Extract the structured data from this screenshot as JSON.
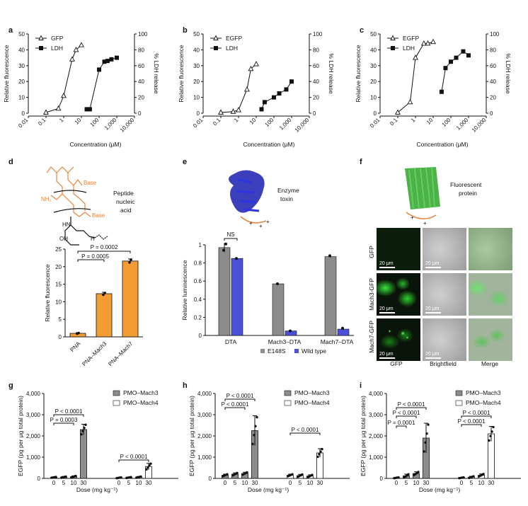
{
  "panels": {
    "a": {
      "letter": "a",
      "legend": [
        "GFP",
        "LDH"
      ],
      "xlabel": "Concentration (μM)",
      "ylabel_left": "Relative fluorescence",
      "ylabel_right": "% LDH release",
      "yticks_left": [
        "0",
        "10",
        "20",
        "30",
        "40",
        "50"
      ],
      "yticks_right": [
        "0",
        "20",
        "40",
        "60",
        "80",
        "100"
      ],
      "xticks": [
        "0.01",
        "0.1",
        "1",
        "10",
        "100",
        "1,000",
        "10,000"
      ]
    },
    "b": {
      "letter": "b",
      "legend": [
        "EGFP",
        "LDH"
      ],
      "xlabel": "Concentration (μM)",
      "ylabel_left": "Relative fluorescence",
      "ylabel_right": "% LDH release",
      "yticks_left": [
        "0",
        "10",
        "20",
        "30",
        "40",
        "50"
      ],
      "yticks_right": [
        "0",
        "20",
        "40",
        "60",
        "80",
        "100"
      ],
      "xticks": [
        "0.01",
        "0.1",
        "1",
        "10",
        "100",
        "1,000",
        "10,000"
      ]
    },
    "c": {
      "letter": "c",
      "legend": [
        "EGFP",
        "LDH"
      ],
      "xlabel": "Concentration (μM)",
      "ylabel_left": "Relative fluorescence",
      "ylabel_right": "% LDH release",
      "yticks_left": [
        "0",
        "10",
        "20",
        "30",
        "40",
        "50"
      ],
      "yticks_right": [
        "0",
        "20",
        "40",
        "60",
        "80",
        "100"
      ],
      "xticks": [
        "0.01",
        "0.1",
        "1",
        "10",
        "100",
        "1,000",
        "10,000"
      ]
    },
    "d": {
      "letter": "d",
      "cargo_label": [
        "Peptide",
        "nucleic",
        "acid"
      ],
      "ylabel": "Relative fluorescence",
      "yticks": [
        "0",
        "5",
        "10",
        "15",
        "20",
        "25"
      ],
      "categories": [
        "PNA",
        "PNA–Mach3",
        "PNA–Mach7"
      ],
      "stats": [
        "P = 0.0002",
        "P = 0.0005"
      ],
      "chem": {
        "base1": "Base",
        "base2": "Base",
        "nh2": "NH₂",
        "hn": "HN",
        "oh": "OH",
        "o": "O",
        "n": "N",
        "h": "H"
      }
    },
    "e": {
      "letter": "e",
      "cargo_label": [
        "Enzyme",
        "toxin"
      ],
      "ylabel": "Relative luminescence",
      "yticks": [
        "0",
        "0.2",
        "0.4",
        "0.6",
        "0.8",
        "1"
      ],
      "categories": [
        "DTA",
        "Mach3–DTA",
        "Mach7–DTA"
      ],
      "legend": [
        "E148S",
        "Wild type"
      ],
      "ns": "NS"
    },
    "f": {
      "letter": "f",
      "cargo_label": [
        "Fluorescent",
        "protein"
      ],
      "rows": [
        "GFP",
        "Mach3-GFP",
        "Mach7-GFP"
      ],
      "cols": [
        "GFP",
        "Brightfield",
        "Merge"
      ],
      "scale_bar": "20 μm"
    },
    "g": {
      "letter": "g",
      "legend": [
        "PMO–Mach3",
        "PMO–Mach4"
      ],
      "stats": [
        "P < 0.0001",
        "P = 0.0003",
        "P < 0.0001"
      ]
    },
    "h": {
      "letter": "h",
      "legend": [
        "PMO–Mach3",
        "PMO–Mach4"
      ],
      "stats": [
        "P < 0.0001",
        "P < 0.0001",
        "P < 0.0001"
      ]
    },
    "i": {
      "letter": "i",
      "legend": [
        "PMO–Mach3",
        "PMO–Mach4"
      ],
      "stats": [
        "P < 0.0001",
        "P < 0.0001",
        "P = 0.0001",
        "P < 0.0001",
        "P < 0.0001"
      ]
    },
    "ghi_common": {
      "ylabel": "EGFP (pg per μg total protein)",
      "yticks": [
        "0",
        "1,000",
        "2,000",
        "3,000",
        "4,000"
      ],
      "doses": [
        "0",
        "5",
        "10",
        "30"
      ],
      "xlabel": "Dose (mg kg⁻¹)"
    }
  },
  "chart_data": [
    {
      "id": "a",
      "type": "scatter",
      "xscale": "log",
      "xlim": [
        0.01,
        10000
      ],
      "ylim_left": [
        0,
        50
      ],
      "ylim_right": [
        0,
        100
      ],
      "series": [
        {
          "name": "GFP",
          "axis": "left",
          "x": [
            0.1,
            0.5,
            1,
            3,
            5,
            10
          ],
          "y": [
            0.5,
            3,
            11,
            34,
            40,
            43
          ]
        },
        {
          "name": "LDH",
          "axis": "right",
          "x": [
            20,
            30,
            100,
            200,
            300,
            500,
            1000
          ],
          "y": [
            5,
            5,
            55,
            65,
            66,
            68,
            70
          ]
        }
      ]
    },
    {
      "id": "b",
      "type": "scatter",
      "xscale": "log",
      "xlim": [
        0.01,
        10000
      ],
      "ylim_left": [
        0,
        50
      ],
      "ylim_right": [
        0,
        100
      ],
      "series": [
        {
          "name": "EGFP",
          "axis": "left",
          "x": [
            0.1,
            0.5,
            1,
            3,
            5,
            10
          ],
          "y": [
            0.5,
            1,
            2,
            15,
            28,
            31
          ]
        },
        {
          "name": "LDH",
          "axis": "right",
          "x": [
            20,
            30,
            100,
            200,
            500,
            1000
          ],
          "y": [
            5,
            14,
            20,
            25,
            30,
            40
          ]
        }
      ]
    },
    {
      "id": "c",
      "type": "scatter",
      "xscale": "log",
      "xlim": [
        0.01,
        10000
      ],
      "ylim_left": [
        0,
        50
      ],
      "ylim_right": [
        0,
        100
      ],
      "series": [
        {
          "name": "EGFP",
          "axis": "left",
          "x": [
            0.1,
            0.5,
            1,
            3,
            5,
            10
          ],
          "y": [
            0.5,
            7,
            35,
            44,
            44,
            45
          ]
        },
        {
          "name": "LDH",
          "axis": "right",
          "x": [
            30,
            50,
            100,
            200,
            500,
            1000
          ],
          "y": [
            27,
            57,
            65,
            70,
            78,
            73
          ]
        }
      ]
    },
    {
      "id": "d",
      "type": "bar",
      "categories": [
        "PNA",
        "PNA–Mach3",
        "PNA–Mach7"
      ],
      "values": [
        1,
        12.3,
        21.6
      ],
      "errors": [
        0.2,
        0.4,
        0.6
      ],
      "points": [
        [
          0.9,
          1.1
        ],
        [
          12.0,
          12.5
        ],
        [
          21.2,
          22.0
        ]
      ],
      "ylim": [
        0,
        25
      ],
      "colors": [
        "#F39C34"
      ]
    },
    {
      "id": "e",
      "type": "bar",
      "categories": [
        "DTA",
        "Mach3–DTA",
        "Mach7–DTA"
      ],
      "series": [
        {
          "name": "E148S",
          "values": [
            0.97,
            0.57,
            0.87
          ],
          "errors": [
            0.05,
            0.01,
            0.01
          ],
          "points": [
            [
              0.94,
              1.01
            ],
            [
              0.57
            ],
            [
              0.88
            ]
          ]
        },
        {
          "name": "Wild type",
          "values": [
            0.85,
            0.05,
            0.07
          ],
          "errors": [
            0.01,
            0.01,
            0.01
          ],
          "points": [
            [
              0.85
            ],
            [
              0.05
            ],
            [
              0.08
            ]
          ]
        }
      ],
      "ylim": [
        0,
        1
      ],
      "colors": [
        "#8C8C8C",
        "#4B50D8"
      ]
    },
    {
      "id": "g",
      "type": "bar",
      "categories": [
        "0",
        "5",
        "10",
        "30"
      ],
      "ylim": [
        0,
        4000
      ],
      "series": [
        {
          "name": "PMO–Mach3",
          "values": [
            50,
            60,
            80,
            2300
          ],
          "errors": [
            20,
            30,
            40,
            250
          ]
        },
        {
          "name": "PMO–Mach4",
          "values": [
            30,
            40,
            60,
            560
          ],
          "errors": [
            20,
            20,
            30,
            150
          ]
        }
      ]
    },
    {
      "id": "h",
      "type": "bar",
      "categories": [
        "0",
        "5",
        "10",
        "30"
      ],
      "ylim": [
        0,
        4000
      ],
      "series": [
        {
          "name": "PMO–Mach3",
          "values": [
            150,
            200,
            230,
            2250
          ],
          "errors": [
            50,
            60,
            60,
            700
          ]
        },
        {
          "name": "PMO–Mach4",
          "values": [
            150,
            130,
            110,
            1200
          ],
          "errors": [
            50,
            60,
            60,
            200
          ]
        }
      ]
    },
    {
      "id": "i",
      "type": "bar",
      "categories": [
        "0",
        "5",
        "10",
        "30"
      ],
      "ylim": [
        0,
        4000
      ],
      "series": [
        {
          "name": "PMO–Mach3",
          "values": [
            30,
            120,
            230,
            1900
          ],
          "errors": [
            20,
            80,
            80,
            700
          ]
        },
        {
          "name": "PMO–Mach4",
          "values": [
            30,
            60,
            150,
            2100
          ],
          "errors": [
            20,
            40,
            60,
            350
          ]
        }
      ]
    }
  ]
}
